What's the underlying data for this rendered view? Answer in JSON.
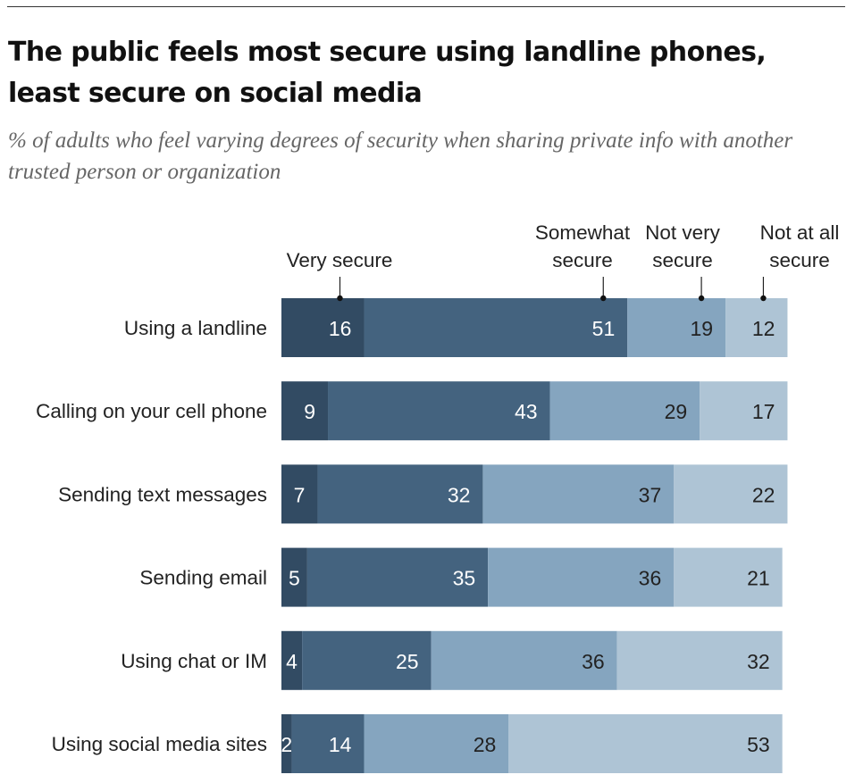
{
  "title": "The public feels most secure using landline phones, least secure on social media",
  "subtitle": "% of adults who feel varying degrees of security when sharing private info with another trusted person or organization",
  "colors": {
    "very_secure": "#324b63",
    "somewhat_secure": "#44637f",
    "not_very_secure": "#85a5bf",
    "not_at_all_secure": "#aec4d5"
  },
  "chart_data": {
    "type": "bar",
    "orientation": "horizontal",
    "stacked": true,
    "title": "The public feels most secure using landline phones, least secure on social media",
    "subtitle": "% of adults who feel varying degrees of security when sharing private info with another trusted person or organization",
    "xlabel": "",
    "ylabel": "",
    "xlim": [
      0,
      100
    ],
    "grid": false,
    "legend_position": "top",
    "categories": [
      "Using a landline",
      "Calling on your cell phone",
      "Sending text messages",
      "Sending email",
      "Using chat or IM",
      "Using social media sites"
    ],
    "series": [
      {
        "name": "Very secure",
        "legend_lines": [
          "Very secure"
        ],
        "values": [
          16,
          9,
          7,
          5,
          4,
          2
        ]
      },
      {
        "name": "Somewhat secure",
        "legend_lines": [
          "Somewhat",
          "secure"
        ],
        "values": [
          51,
          43,
          32,
          35,
          25,
          14
        ]
      },
      {
        "name": "Not very secure",
        "legend_lines": [
          "Not very",
          "secure"
        ],
        "values": [
          19,
          29,
          37,
          36,
          36,
          28
        ]
      },
      {
        "name": "Not at all secure",
        "legend_lines": [
          "Not at all",
          "secure"
        ],
        "values": [
          12,
          17,
          22,
          21,
          32,
          53
        ]
      }
    ]
  }
}
